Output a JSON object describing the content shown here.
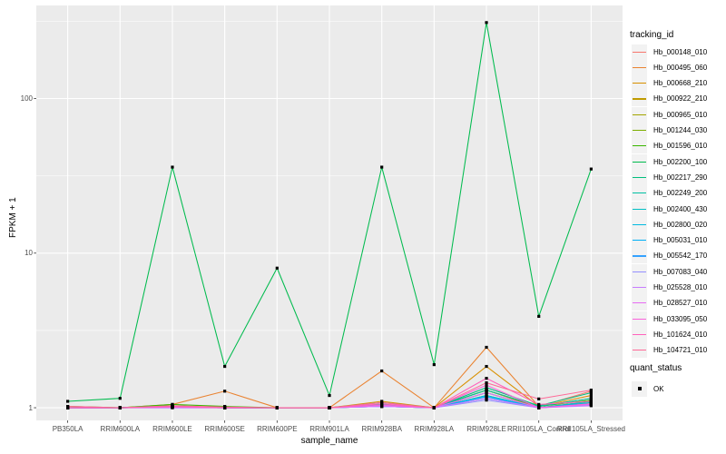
{
  "figure": {
    "panel_bg": "#EBEBEB",
    "grid_color": "#FFFFFF",
    "axis_text_color": "#4D4D4D",
    "tick_color": "#333333",
    "point_color": "#000000",
    "legend_key_bg": "#F2F2F2"
  },
  "axes": {
    "x_title": "sample_name",
    "y_title": "FPKM + 1"
  },
  "legend": {
    "tracking_title": "tracking_id",
    "quant_title": "quant_status",
    "quant_ok_label": "OK"
  },
  "chart_data": {
    "type": "line",
    "title": "",
    "xlabel": "sample_name",
    "ylabel": "FPKM + 1",
    "x_scale": "categorical",
    "y_scale": "log10",
    "ylim": [
      0.828,
      400
    ],
    "y_major_ticks": [
      1,
      10,
      100
    ],
    "y_tick_labels": [
      "1",
      "10",
      "100"
    ],
    "y_minor_ticks": [
      3.162,
      31.62,
      316.2
    ],
    "grid": true,
    "legend_position": "right",
    "marker": "black-square",
    "categories": [
      "PB350LA",
      "RRIM600LA",
      "RRIM600LE",
      "RRIM600SE",
      "RRIM600PE",
      "RRIM901LA",
      "RRIM928BA",
      "RRIM928LA",
      "RRIM928LE",
      "RRII105LA_Control",
      "RRII105LA_Stressed"
    ],
    "series": [
      {
        "name": "Hb_000148_010",
        "color": "#F8766D",
        "values": [
          1.0,
          1.0,
          1.02,
          1.0,
          1.0,
          1.0,
          1.05,
          1.0,
          1.3,
          1.02,
          1.28
        ]
      },
      {
        "name": "Hb_000495_060",
        "color": "#EA8331",
        "values": [
          1.0,
          1.0,
          1.05,
          1.28,
          1.0,
          1.0,
          1.73,
          1.0,
          2.46,
          1.02,
          1.15
        ]
      },
      {
        "name": "Hb_000668_210",
        "color": "#D89000",
        "values": [
          1.0,
          1.0,
          1.03,
          1.0,
          1.0,
          1.0,
          1.1,
          1.0,
          1.85,
          1.02,
          1.2
        ]
      },
      {
        "name": "Hb_000922_210",
        "color": "#C09B00",
        "values": [
          1.0,
          1.0,
          1.02,
          1.0,
          1.0,
          1.0,
          1.05,
          1.0,
          1.3,
          1.0,
          1.1
        ]
      },
      {
        "name": "Hb_000965_010",
        "color": "#A3A500",
        "values": [
          1.0,
          1.0,
          1.01,
          1.0,
          1.0,
          1.0,
          1.02,
          1.0,
          1.2,
          1.0,
          1.05
        ]
      },
      {
        "name": "Hb_001244_030",
        "color": "#7CAE00",
        "values": [
          1.0,
          1.0,
          1.02,
          1.0,
          1.0,
          1.0,
          1.03,
          1.0,
          1.25,
          1.0,
          1.08
        ]
      },
      {
        "name": "Hb_001596_010",
        "color": "#39B600",
        "values": [
          1.02,
          1.0,
          1.05,
          1.02,
          1.0,
          1.0,
          1.05,
          1.0,
          1.3,
          1.02,
          1.12
        ]
      },
      {
        "name": "Hb_002200_100",
        "color": "#00BB4E",
        "values": [
          1.1,
          1.15,
          36,
          1.85,
          8,
          1.2,
          36,
          1.9,
          310,
          3.9,
          35
        ]
      },
      {
        "name": "Hb_002217_290",
        "color": "#00BF7D",
        "values": [
          1.0,
          1.0,
          1.03,
          1.0,
          1.0,
          1.0,
          1.08,
          1.0,
          1.35,
          1.03,
          1.25
        ]
      },
      {
        "name": "Hb_002249_200",
        "color": "#00C1A3",
        "values": [
          1.0,
          1.0,
          1.02,
          1.0,
          1.0,
          1.0,
          1.05,
          1.0,
          1.3,
          1.02,
          1.15
        ]
      },
      {
        "name": "Hb_002400_430",
        "color": "#00BFC4",
        "values": [
          1.0,
          1.0,
          1.02,
          1.0,
          1.0,
          1.0,
          1.04,
          1.0,
          1.25,
          1.0,
          1.1
        ]
      },
      {
        "name": "Hb_002800_020",
        "color": "#00BAE0",
        "values": [
          1.0,
          1.0,
          1.01,
          1.0,
          1.0,
          1.0,
          1.03,
          1.0,
          1.2,
          1.0,
          1.08
        ]
      },
      {
        "name": "Hb_005031_010",
        "color": "#00B0F6",
        "values": [
          1.0,
          1.0,
          1.01,
          1.0,
          1.0,
          1.0,
          1.02,
          1.0,
          1.18,
          1.0,
          1.06
        ]
      },
      {
        "name": "Hb_005542_170",
        "color": "#35A2FF",
        "values": [
          1.0,
          1.0,
          1.01,
          1.0,
          1.0,
          1.0,
          1.02,
          1.0,
          1.15,
          1.0,
          1.05
        ]
      },
      {
        "name": "Hb_007083_040",
        "color": "#9590FF",
        "values": [
          1.0,
          1.0,
          1.0,
          1.0,
          1.0,
          1.0,
          1.02,
          1.0,
          1.12,
          1.0,
          1.04
        ]
      },
      {
        "name": "Hb_025528_010",
        "color": "#C77CFF",
        "values": [
          1.0,
          1.0,
          1.0,
          1.0,
          1.0,
          1.0,
          1.02,
          1.0,
          1.15,
          1.0,
          1.03
        ]
      },
      {
        "name": "Hb_028527_010",
        "color": "#E76BF3",
        "values": [
          1.0,
          1.0,
          1.01,
          1.0,
          1.0,
          1.0,
          1.03,
          1.0,
          1.25,
          1.0,
          1.05
        ]
      },
      {
        "name": "Hb_033095_050",
        "color": "#FA62DB",
        "values": [
          1.0,
          1.0,
          1.01,
          1.0,
          1.0,
          1.0,
          1.04,
          1.0,
          1.4,
          1.0,
          1.06
        ]
      },
      {
        "name": "Hb_101624_010",
        "color": "#FF62BC",
        "values": [
          1.0,
          1.0,
          1.02,
          1.0,
          1.0,
          1.0,
          1.06,
          1.0,
          1.55,
          1.05,
          1.1
        ]
      },
      {
        "name": "Hb_104721_010",
        "color": "#FF6A98",
        "values": [
          1.02,
          1.0,
          1.03,
          1.01,
          1.0,
          1.0,
          1.08,
          1.0,
          1.45,
          1.14,
          1.3
        ]
      }
    ]
  }
}
